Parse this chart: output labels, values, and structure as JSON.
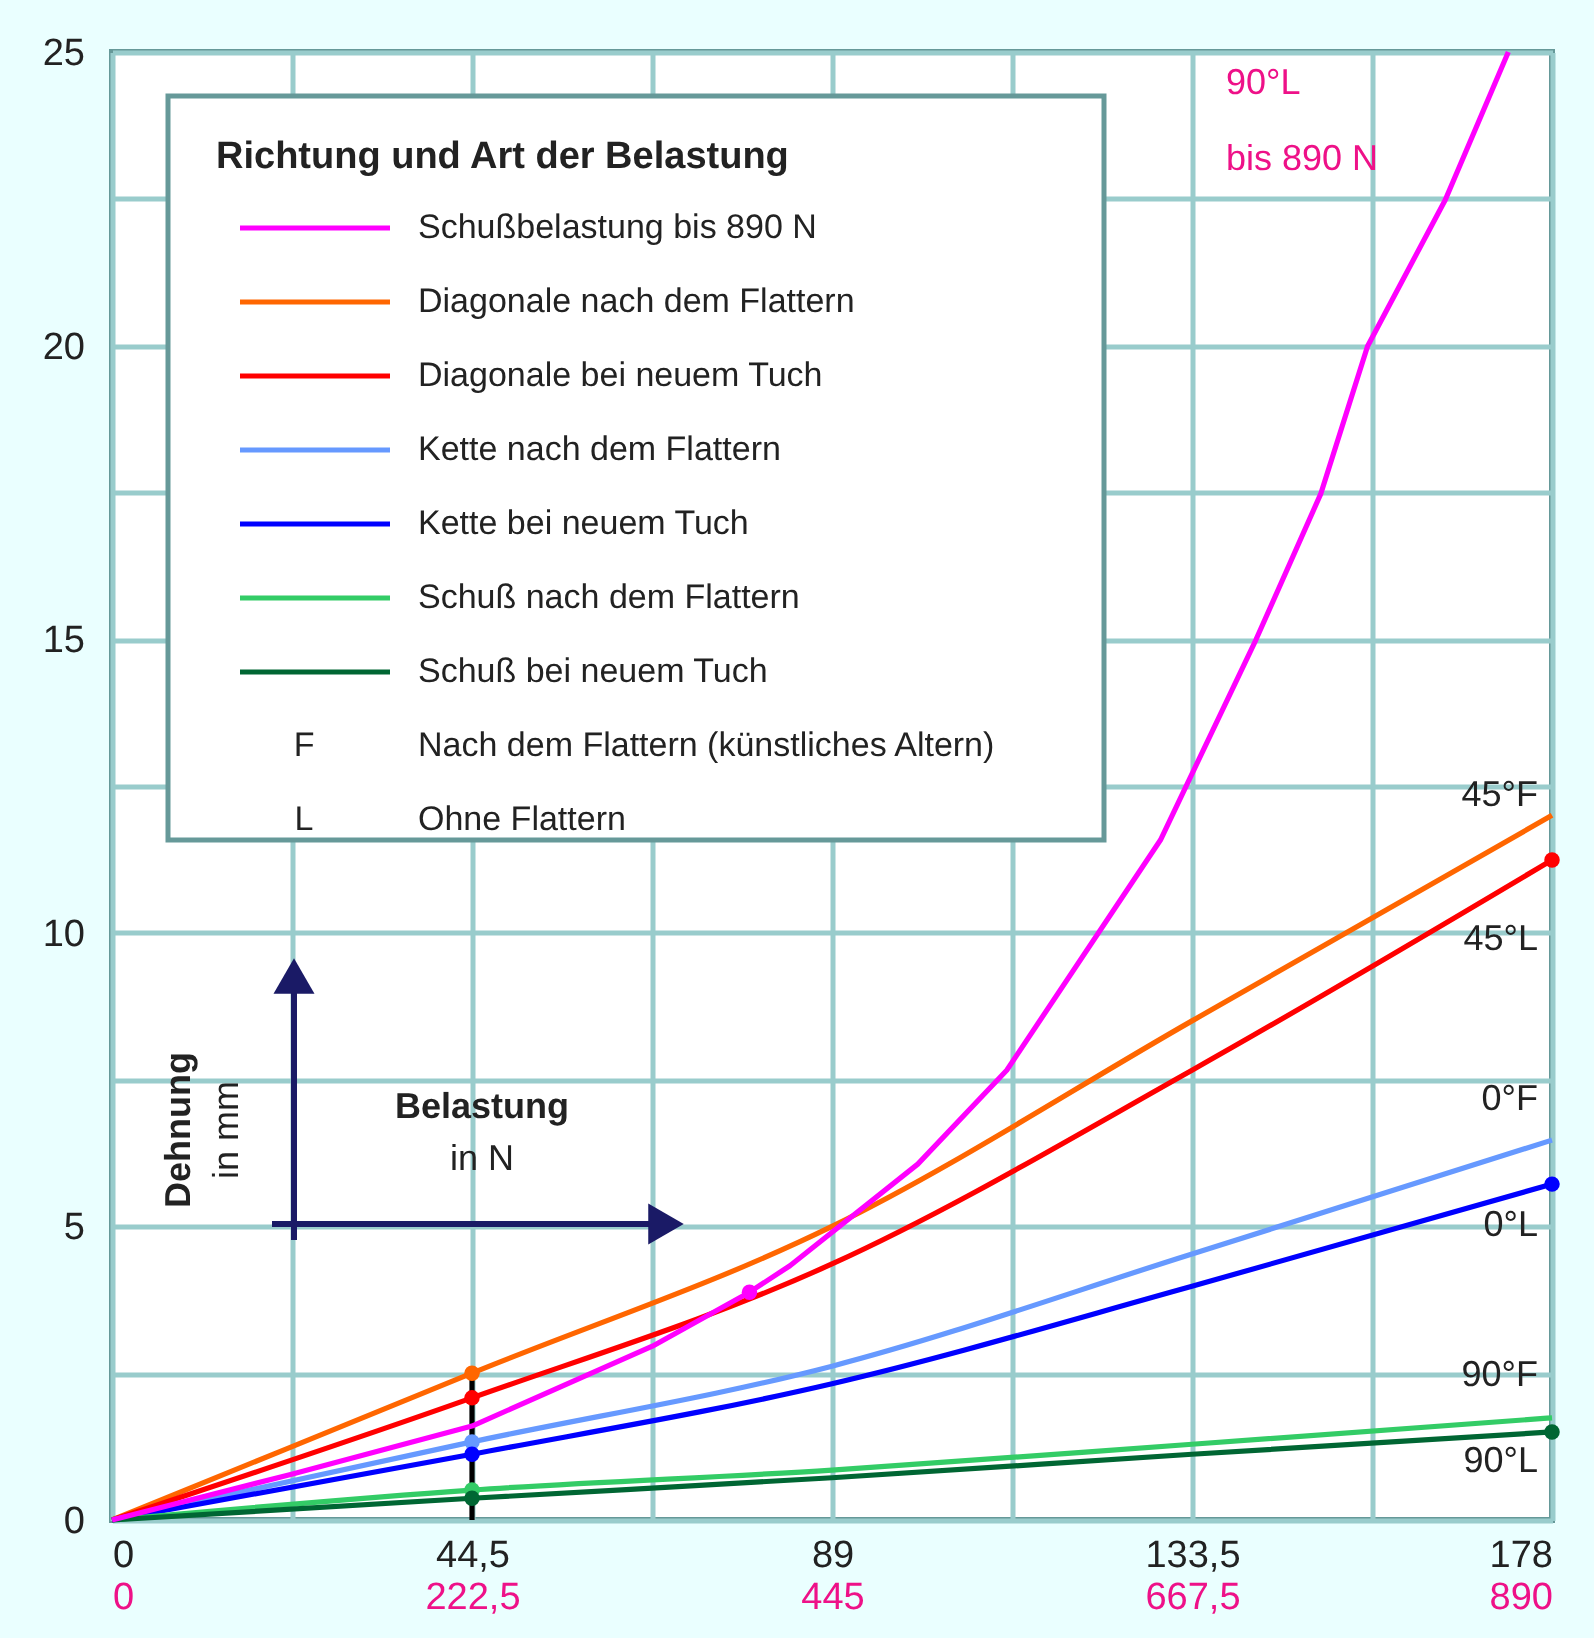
{
  "chart_data": {
    "type": "line",
    "legend_title": "Richtung und Art der Belastung",
    "xlabel": "Belastung in N",
    "ylabel": "Dehnung in mm",
    "x": [
      0,
      44.5,
      89,
      133.5,
      178
    ],
    "series": [
      {
        "name": "Schußbelastung bis 890 N",
        "color": "#ff00ff",
        "axis": "x2",
        "x": [
          0,
          111,
          222.5,
          334,
          394,
          419,
          498,
          553,
          648,
          707,
          747,
          776,
          824,
          863
        ],
        "values": [
          0,
          0.78,
          1.6,
          2.96,
          3.88,
          4.33,
          6.06,
          7.66,
          11.58,
          14.99,
          17.47,
          19.99,
          22.48,
          25
        ]
      },
      {
        "name": "Diagonale nach dem Flattern",
        "color": "#ff6600",
        "values": [
          0,
          2.5,
          5.0,
          8.5,
          12.0
        ]
      },
      {
        "name": "Diagonale bei neuem Tuch",
        "color": "#ff0000",
        "values": [
          0,
          2.08,
          4.36,
          7.66,
          11.24
        ]
      },
      {
        "name": "Kette nach dem Flattern",
        "color": "#6699ff",
        "values": [
          0,
          1.33,
          2.62,
          4.53,
          6.47
        ]
      },
      {
        "name": "Kette bei neuem Tuch",
        "color": "#0000ff",
        "values": [
          0,
          1.12,
          2.32,
          3.98,
          5.72
        ]
      },
      {
        "name": "Schuß nach dem Flattern",
        "color": "#33cc66",
        "values": [
          0,
          0.51,
          0.85,
          1.29,
          1.74
        ]
      },
      {
        "name": "Schuß bei neuem Tuch",
        "color": "#006633",
        "values": [
          0,
          0.37,
          0.72,
          1.12,
          1.5
        ]
      },
      {
        "type": "line",
        "color": "#000000",
        "x": [
          44.5,
          44.5
        ],
        "values": [
          0,
          2.5
        ]
      },
      {
        "type": "scatter",
        "x": [
          44.5,
          44.5,
          44.5,
          44.5,
          44.5,
          44.5,
          178,
          178,
          178,
          78.8
        ],
        "values": [
          2.5,
          2.08,
          1.33,
          1.12,
          0.51,
          0.37,
          11.24,
          5.72,
          1.5,
          3.88
        ],
        "colors": [
          "#ff6600",
          "#ff0000",
          "#6699ff",
          "#0000ff",
          "#33cc66",
          "#006633",
          "#ff0000",
          "#0000ff",
          "#006633",
          "#ff00ff"
        ]
      }
    ],
    "xlim": [
      0,
      178
    ],
    "xticks": [
      0,
      {
        "value": 22.25,
        "label": null
      },
      {
        "value": 44.5,
        "label": "44,5"
      },
      {
        "value": 66.75,
        "label": null
      },
      89,
      {
        "value": 111.25,
        "label": null
      },
      {
        "value": 133.5,
        "label": "133,5"
      },
      {
        "value": 155.75,
        "label": null
      },
      178
    ],
    "x2lim": [
      0,
      890
    ],
    "x2ticks": [
      0,
      {
        "value": 222.5,
        "label": "222,5"
      },
      445,
      {
        "value": 667.5,
        "label": "667,5"
      },
      890
    ],
    "ylim": [
      0,
      25
    ],
    "yticks": [
      0,
      {
        "value": 2.5,
        "label": null
      },
      5,
      {
        "value": 7.5,
        "label": null
      },
      10,
      {
        "value": 12.5,
        "label": null
      },
      15,
      {
        "value": 17.5,
        "label": null
      },
      20,
      {
        "value": 22.5,
        "label": null
      },
      25
    ],
    "grid": true,
    "legend": "top left",
    "annotations": [
      "F",
      "Nach dem Flattern (künstliches Altern)",
      "L",
      "Ohne Flattern",
      "90°L",
      "bis 890 N",
      "45°F",
      "45°L",
      "0°F",
      "0°L",
      "90°F",
      "90°L"
    ]
  }
}
